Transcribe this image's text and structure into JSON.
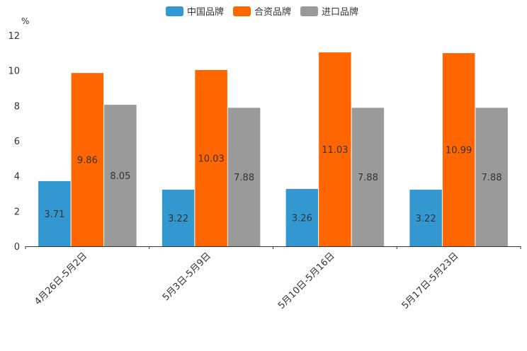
{
  "chart_data": {
    "type": "bar",
    "unit": "%",
    "categories": [
      "4月26日-5月2日",
      "5月3日-5月9日",
      "5月10日-5月16日",
      "5月17日-5月23日"
    ],
    "series": [
      {
        "name": "中国品牌",
        "color": "#3498d0",
        "values": [
          3.71,
          3.22,
          3.26,
          3.22
        ]
      },
      {
        "name": "合资品牌",
        "color": "#ff6600",
        "values": [
          9.86,
          10.03,
          11.03,
          10.99
        ]
      },
      {
        "name": "进口品牌",
        "color": "#9a9a9a",
        "values": [
          8.05,
          7.88,
          7.88,
          7.88
        ]
      }
    ],
    "ylim": [
      0,
      12
    ],
    "yticks": [
      0,
      2,
      4,
      6,
      8,
      10,
      12
    ],
    "legend_position": "top-center",
    "grid": false,
    "title": "",
    "xlabel": "",
    "ylabel": "%"
  }
}
